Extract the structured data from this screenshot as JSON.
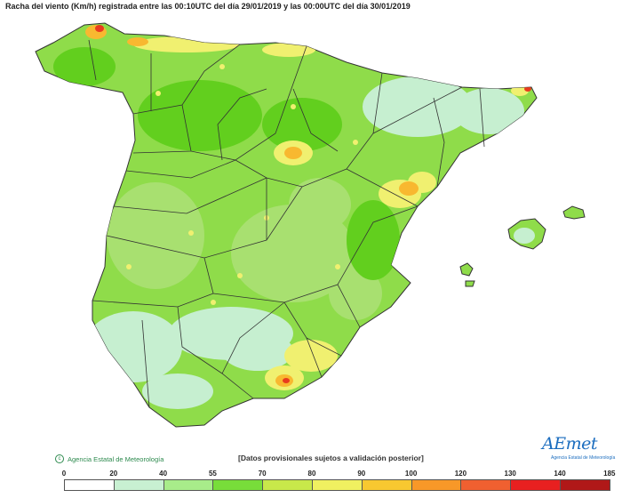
{
  "title": "Racha del viento (Km/h) registrada entre las 00:10UTC del día 29/01/2019 y las 00:00UTC del día 30/01/2019",
  "credit": "Agencia Estatal de Meteorología",
  "disclaimer": "[Datos provisionales sujetos a validación posterior]",
  "logo": {
    "text": "AEmet",
    "subtitle": "Agencia Estatal de Meteorología"
  },
  "legend": {
    "ticks": [
      "0",
      "20",
      "40",
      "55",
      "70",
      "80",
      "90",
      "100",
      "120",
      "130",
      "140",
      "185"
    ],
    "colors": [
      "#ffffff",
      "#c8f0d2",
      "#a8ec8a",
      "#78dd3a",
      "#c8e84a",
      "#f0f060",
      "#f8c830",
      "#f89828",
      "#f06030",
      "#e82020",
      "#b01818"
    ]
  },
  "colors": {
    "land_base": "#8fdc4a",
    "land_light": "#c6efd0",
    "land_mid": "#a8e070",
    "land_strong": "#62cf1e",
    "yellow": "#f0f070",
    "orange": "#f8b830",
    "red": "#e83b1e",
    "border": "#333333",
    "sea": "#ffffff"
  }
}
